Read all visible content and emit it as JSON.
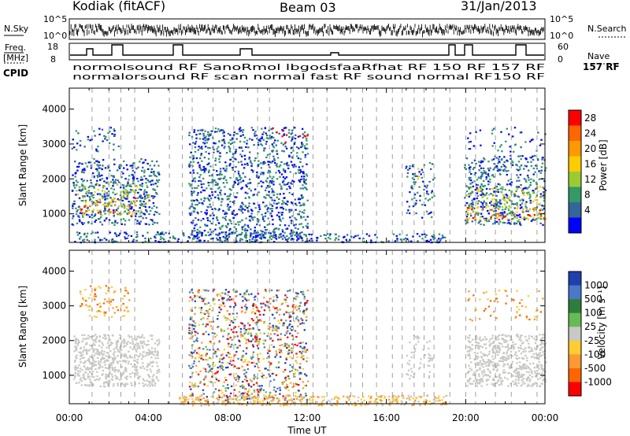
{
  "header": {
    "station": "Kodiak (fitACF)",
    "beam": "Beam 03",
    "date": "31/Jan/2013"
  },
  "status_panels": {
    "nsky_label": "N.Sky",
    "nsearch_label": "N.Search",
    "nsky_ticks": [
      "10^5",
      "10^0"
    ],
    "freq_label_1": "Freq.",
    "freq_label_2": "[MHz]",
    "freq_ticks": [
      "18",
      "8"
    ],
    "nave_label": "Nave",
    "nave_ticks": [
      "60",
      "0"
    ],
    "cpid_label": "CPID",
    "cpid_tail": "157 RF",
    "cpid_row1": "normolsound RF SanoRmol lbgodsfaaRfhat RF 150 RF 157 RF",
    "cpid_row2": "normalorsound RF scan normal fast RF sound normal RF150 RF"
  },
  "chart_data": [
    {
      "type": "heatmap",
      "quantity": "Power",
      "xlabel": "Time UT",
      "ylabel": "Slant Range [km]",
      "colorbar_label": "Power [dB]",
      "colorbar_ticks": [
        "28",
        "24",
        "20",
        "16",
        "12",
        "8",
        "4"
      ],
      "colorbar_colors": [
        "#ff0000",
        "#ff6600",
        "#ff9900",
        "#ffcc00",
        "#99cc33",
        "#339966",
        "#336699",
        "#0000ff"
      ],
      "x_ticks": [
        "00:00",
        "04:00",
        "08:00",
        "12:00",
        "16:00",
        "20:00",
        "00:00"
      ],
      "y_ticks": [
        "1000",
        "2000",
        "3000",
        "4000"
      ],
      "ylim": [
        180,
        4600
      ]
    },
    {
      "type": "heatmap",
      "quantity": "Velocity",
      "xlabel": "Time UT",
      "ylabel": "Slant Range [km]",
      "colorbar_label": "Velocity [m s⁻¹]",
      "colorbar_ticks": [
        "1000",
        "500",
        "100",
        "25",
        "-25",
        "-100",
        "-500",
        "-1000"
      ],
      "colorbar_colors": [
        "#1f3fae",
        "#4a78c8",
        "#2f7d3a",
        "#66bb55",
        "#c8c8c4",
        "#ffcc33",
        "#ff9933",
        "#ff6600",
        "#ff0000"
      ],
      "x_ticks": [
        "00:00",
        "04:00",
        "08:00",
        "12:00",
        "16:00",
        "20:00",
        "00:00"
      ],
      "y_ticks": [
        "1000",
        "2000",
        "3000",
        "4000"
      ],
      "ylim": [
        180,
        4600
      ]
    }
  ],
  "x_axis_label": "Time UT"
}
